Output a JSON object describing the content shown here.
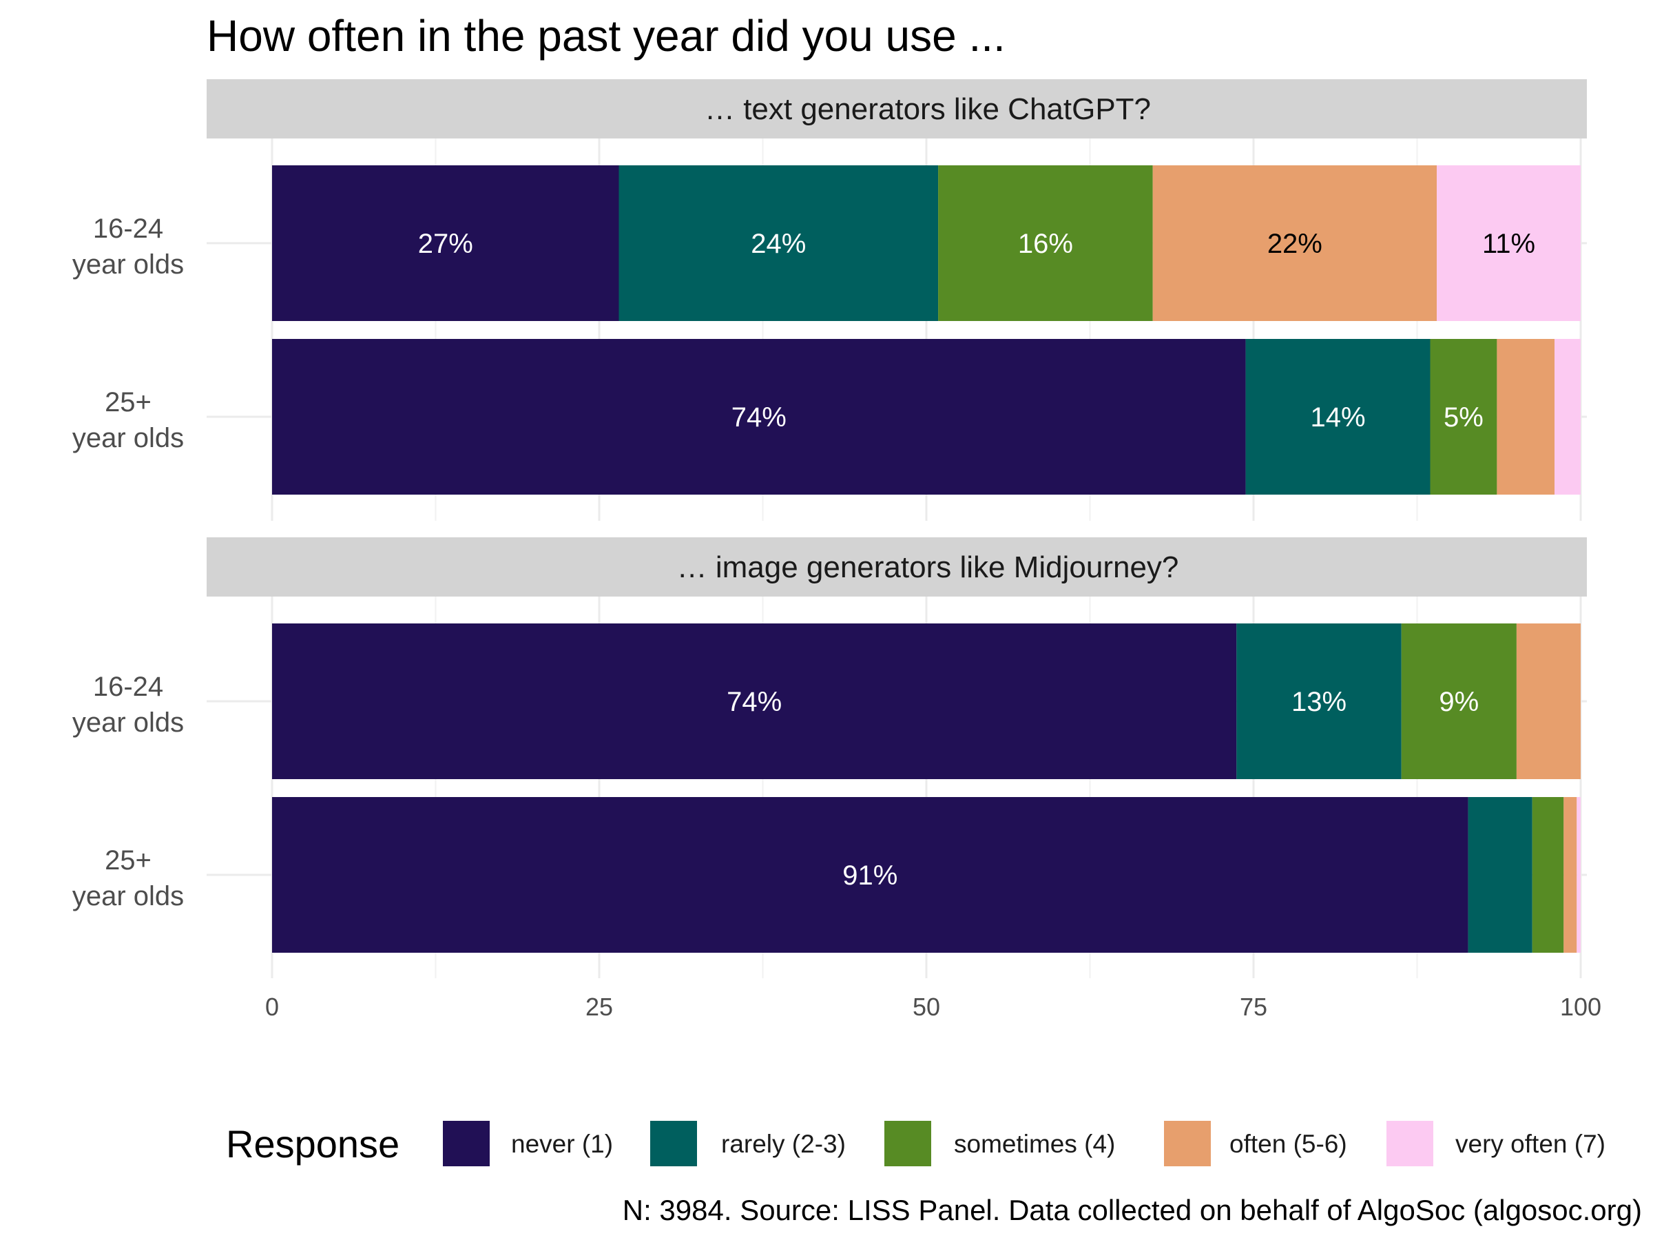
{
  "chart_data": {
    "type": "bar",
    "orientation": "horizontal",
    "stacked": true,
    "title": "How often in the past year did you use ...",
    "caption": "N: 3984. Source: LISS Panel. Data collected on behalf of AlgoSoc (algosoc.org)",
    "xlim": [
      0,
      100
    ],
    "x_ticks": [
      "0",
      "25",
      "50",
      "75",
      "100"
    ],
    "grid": true,
    "legend": {
      "title": "Response",
      "position": "bottom",
      "entries": [
        {
          "label": "never (1)",
          "color": "#211055"
        },
        {
          "label": "rarely (2-3)",
          "color": "#005f5e"
        },
        {
          "label": "sometimes (4)",
          "color": "#578b24"
        },
        {
          "label": "often (5-6)",
          "color": "#e79f6d"
        },
        {
          "label": "very often (7)",
          "color": "#fccaf2"
        }
      ]
    },
    "panels": [
      {
        "title": "… text generators like ChatGPT?",
        "categories": [
          {
            "line1": "16-24",
            "line2": "year olds"
          },
          {
            "line1": "25+",
            "line2": "year olds"
          }
        ],
        "series": [
          {
            "name": "never (1)",
            "values": [
              26.5,
              74.4
            ],
            "labels": [
              "27%",
              "74%"
            ]
          },
          {
            "name": "rarely (2-3)",
            "values": [
              24.4,
              14.1
            ],
            "labels": [
              "24%",
              "14%"
            ]
          },
          {
            "name": "sometimes (4)",
            "values": [
              16.4,
              5.1
            ],
            "labels": [
              "16%",
              "5%"
            ]
          },
          {
            "name": "often (5-6)",
            "values": [
              21.7,
              4.4
            ],
            "labels": [
              "22%",
              ""
            ]
          },
          {
            "name": "very often (7)",
            "values": [
              11.0,
              2.0
            ],
            "labels": [
              "11%",
              ""
            ]
          }
        ]
      },
      {
        "title": "… image generators like Midjourney?",
        "categories": [
          {
            "line1": "16-24",
            "line2": "year olds"
          },
          {
            "line1": "25+",
            "line2": "year olds"
          }
        ],
        "series": [
          {
            "name": "never (1)",
            "values": [
              73.7,
              91.4
            ],
            "labels": [
              "74%",
              "91%"
            ]
          },
          {
            "name": "rarely (2-3)",
            "values": [
              12.6,
              4.9
            ],
            "labels": [
              "13%",
              ""
            ]
          },
          {
            "name": "sometimes (4)",
            "values": [
              8.8,
              2.4
            ],
            "labels": [
              "9%",
              ""
            ]
          },
          {
            "name": "often (5-6)",
            "values": [
              4.9,
              1.0
            ],
            "labels": [
              "",
              ""
            ]
          },
          {
            "name": "very often (7)",
            "values": [
              0.0,
              0.3
            ],
            "labels": [
              "",
              ""
            ]
          }
        ]
      }
    ]
  }
}
